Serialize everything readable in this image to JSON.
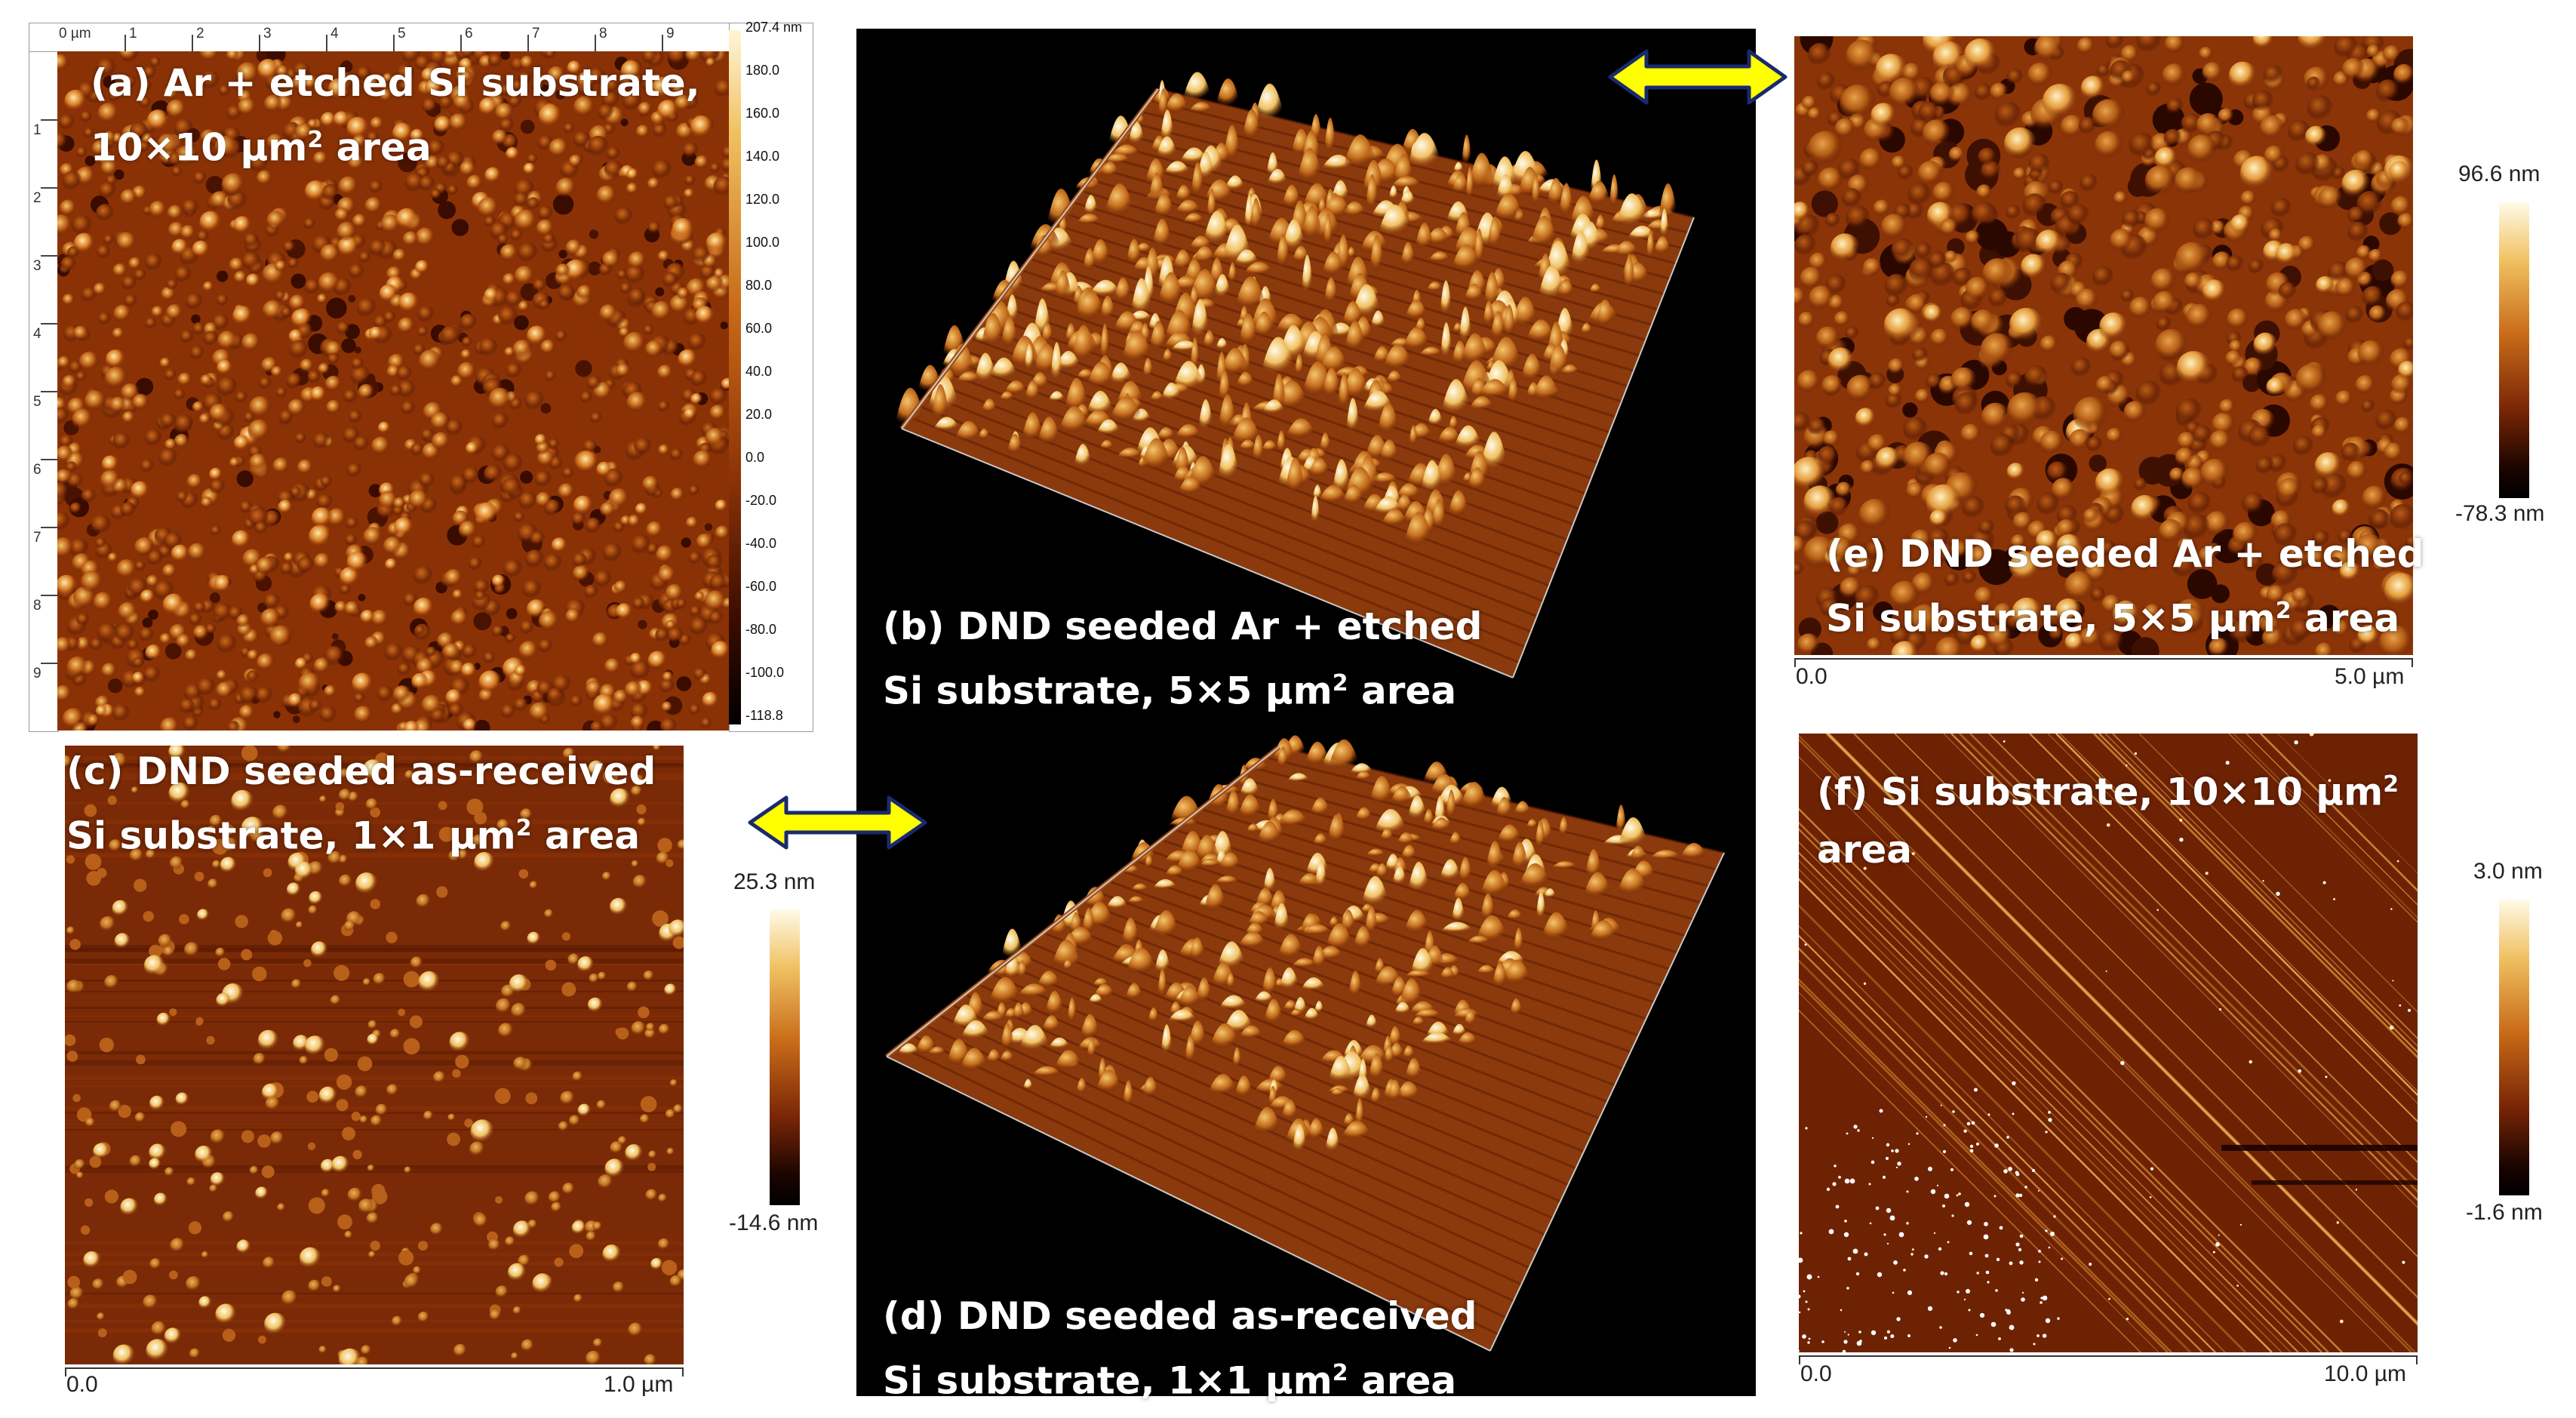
{
  "panels": {
    "a": {
      "label_line1": "(a) Ar + etched Si substrate,",
      "label_line2_pre": "10×10 µm",
      "label_line2_sup": "2",
      "label_line2_post": " area",
      "ruler_unit": "0 µm",
      "ruler_ticks": [
        "1",
        "2",
        "3",
        "4",
        "5",
        "6",
        "7",
        "8",
        "9"
      ],
      "left_ticks": [
        "1",
        "2",
        "3",
        "4",
        "5",
        "6",
        "7",
        "8",
        "9"
      ],
      "scale_values": [
        "207.4 nm",
        "180.0",
        "160.0",
        "140.0",
        "120.0",
        "100.0",
        "80.0",
        "60.0",
        "40.0",
        "20.0",
        "0.0",
        "-20.0",
        "-40.0",
        "-60.0",
        "-80.0",
        "-100.0",
        "-118.8"
      ]
    },
    "b": {
      "label_line1": "(b) DND seeded Ar + etched",
      "label_line2_pre": "Si substrate, 5×5 µm",
      "label_line2_sup": "2",
      "label_line2_post": " area"
    },
    "c": {
      "label_line1": "(c) DND seeded as-received",
      "label_line2_pre": "Si substrate, 1×1 µm",
      "label_line2_sup": "2",
      "label_line2_post": " area",
      "color_max": "25.3 nm",
      "color_min": "-14.6 nm",
      "x_min": "0.0",
      "x_max": "1.0 µm"
    },
    "d": {
      "label_line1": "(d) DND seeded as-received",
      "label_line2_pre": "Si substrate, 1×1 µm",
      "label_line2_sup": "2",
      "label_line2_post": " area"
    },
    "e": {
      "label_line1": "(e) DND seeded Ar + etched",
      "label_line2_pre": "Si substrate, 5×5 µm",
      "label_line2_sup": "2",
      "label_line2_post": " area",
      "color_max": "96.6 nm",
      "color_min": "-78.3 nm",
      "x_min": "0.0",
      "x_max": "5.0 µm"
    },
    "f": {
      "label_line1_pre": "(f) Si substrate, 10×10 µm",
      "label_line1_sup": "2",
      "label_line2": "area",
      "color_max": "3.0 nm",
      "color_min": "-1.6 nm",
      "x_min": "0.0",
      "x_max": "10.0 µm"
    }
  },
  "colors": {
    "afm_dark": "#2a0800",
    "afm_mid": "#9a3c08",
    "afm_high": "#f0c060",
    "afm_peak": "#fff6d8",
    "arrow_fill": "#ffff00",
    "arrow_outline": "#1a2a6e"
  },
  "icons": [
    "double-arrow-icon",
    "double-arrow-icon"
  ]
}
